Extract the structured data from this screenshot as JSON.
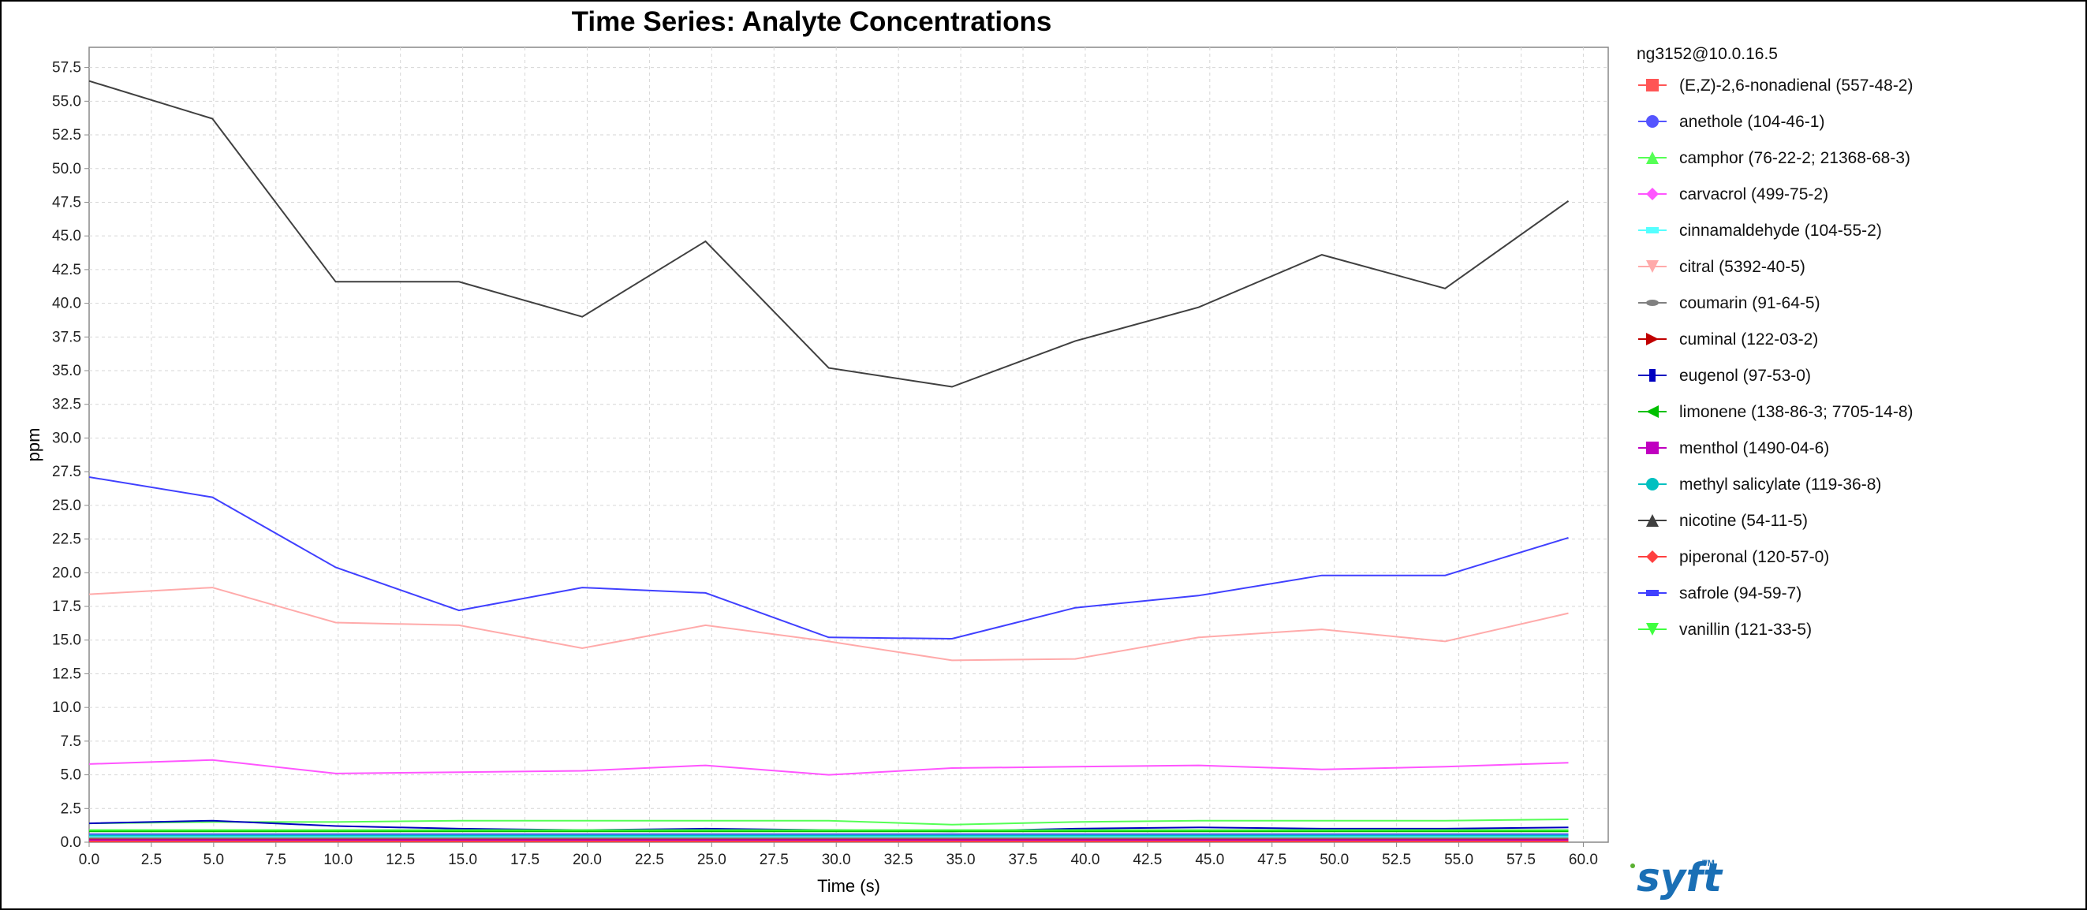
{
  "chart_data": {
    "type": "line",
    "title": "Time Series: Analyte Concentrations",
    "xlabel": "Time (s)",
    "ylabel": "ppm",
    "xlim": [
      0,
      61
    ],
    "ylim": [
      0,
      59
    ],
    "x_ticks": [
      0.0,
      2.5,
      5.0,
      7.5,
      10.0,
      12.5,
      15.0,
      17.5,
      20.0,
      22.5,
      25.0,
      27.5,
      30.0,
      32.5,
      35.0,
      37.5,
      40.0,
      42.5,
      45.0,
      47.5,
      50.0,
      52.5,
      55.0,
      57.5,
      60.0
    ],
    "y_ticks": [
      0.0,
      2.5,
      5.0,
      7.5,
      10.0,
      12.5,
      15.0,
      17.5,
      20.0,
      22.5,
      25.0,
      27.5,
      30.0,
      32.5,
      35.0,
      37.5,
      40.0,
      42.5,
      45.0,
      47.5,
      50.0,
      52.5,
      55.0,
      57.5
    ],
    "grid": true,
    "legend_title": "ng3152@10.0.16.5",
    "legend_position": "right",
    "x": [
      0,
      5,
      10,
      15,
      20,
      25,
      30,
      35,
      40,
      45,
      50,
      55,
      60
    ],
    "series": [
      {
        "name": "(E,Z)-2,6-nonadienal (557-48-2)",
        "color": "#ff5555",
        "marker": "square",
        "values": [
          0.1,
          0.1,
          0.1,
          0.1,
          0.1,
          0.1,
          0.1,
          0.1,
          0.1,
          0.1,
          0.1,
          0.1,
          0.1
        ]
      },
      {
        "name": "anethole (104-46-1)",
        "color": "#5555ff",
        "marker": "circle",
        "values": [
          0.6,
          0.6,
          0.6,
          0.6,
          0.6,
          0.6,
          0.6,
          0.6,
          0.6,
          0.6,
          0.6,
          0.6,
          0.6
        ]
      },
      {
        "name": "camphor (76-22-2; 21368-68-3)",
        "color": "#55ff55",
        "marker": "triangle-up",
        "values": [
          1.4,
          1.5,
          1.5,
          1.6,
          1.6,
          1.6,
          1.6,
          1.3,
          1.5,
          1.6,
          1.6,
          1.6,
          1.7
        ]
      },
      {
        "name": "carvacrol (499-75-2)",
        "color": "#ff55ff",
        "marker": "diamond",
        "values": [
          5.8,
          6.1,
          5.1,
          5.2,
          5.3,
          5.7,
          5.0,
          5.5,
          5.6,
          5.7,
          5.4,
          5.6,
          5.9
        ]
      },
      {
        "name": "cinnamaldehyde (104-55-2)",
        "color": "#55ffff",
        "marker": "rect-h",
        "values": [
          0.4,
          0.4,
          0.4,
          0.4,
          0.4,
          0.4,
          0.4,
          0.4,
          0.4,
          0.4,
          0.4,
          0.4,
          0.4
        ]
      },
      {
        "name": "citral (5392-40-5)",
        "color": "#ffaaaa",
        "marker": "triangle-down",
        "values": [
          18.4,
          18.9,
          16.3,
          16.1,
          14.4,
          16.1,
          14.9,
          13.5,
          13.6,
          15.2,
          15.8,
          14.9,
          17.0
        ]
      },
      {
        "name": "coumarin (91-64-5)",
        "color": "#808080",
        "marker": "ellipse",
        "values": [
          0.3,
          0.3,
          0.3,
          0.3,
          0.3,
          0.3,
          0.3,
          0.3,
          0.3,
          0.3,
          0.3,
          0.3,
          0.3
        ]
      },
      {
        "name": "cuminal (122-03-2)",
        "color": "#c00000",
        "marker": "triangle-right",
        "values": [
          0.2,
          0.2,
          0.2,
          0.2,
          0.2,
          0.2,
          0.2,
          0.2,
          0.2,
          0.2,
          0.2,
          0.2,
          0.2
        ]
      },
      {
        "name": "eugenol (97-53-0)",
        "color": "#0000c0",
        "marker": "rect-v",
        "values": [
          1.4,
          1.6,
          1.2,
          1.0,
          0.9,
          1.0,
          0.9,
          0.8,
          1.0,
          1.1,
          1.0,
          1.0,
          1.1
        ]
      },
      {
        "name": "limonene (138-86-3; 7705-14-8)",
        "color": "#00c000",
        "marker": "triangle-left",
        "values": [
          0.8,
          0.8,
          0.8,
          0.8,
          0.8,
          0.8,
          0.8,
          0.8,
          0.8,
          0.8,
          0.8,
          0.8,
          0.8
        ]
      },
      {
        "name": "menthol (1490-04-6)",
        "color": "#c000c0",
        "marker": "square",
        "values": [
          0.15,
          0.15,
          0.15,
          0.15,
          0.15,
          0.15,
          0.15,
          0.15,
          0.15,
          0.15,
          0.15,
          0.15,
          0.15
        ]
      },
      {
        "name": "methyl salicylate (119-36-8)",
        "color": "#00c0c0",
        "marker": "circle",
        "values": [
          0.5,
          0.5,
          0.5,
          0.5,
          0.5,
          0.5,
          0.5,
          0.5,
          0.5,
          0.5,
          0.5,
          0.5,
          0.5
        ]
      },
      {
        "name": "nicotine (54-11-5)",
        "color": "#404040",
        "marker": "triangle-up",
        "values": [
          56.5,
          53.7,
          41.6,
          41.6,
          39.0,
          44.6,
          35.2,
          33.8,
          37.2,
          39.7,
          43.6,
          41.1,
          47.6
        ]
      },
      {
        "name": "piperonal (120-57-0)",
        "color": "#ff4040",
        "marker": "diamond",
        "values": [
          0.05,
          0.05,
          0.05,
          0.05,
          0.05,
          0.05,
          0.05,
          0.05,
          0.05,
          0.05,
          0.05,
          0.05,
          0.05
        ]
      },
      {
        "name": "safrole (94-59-7)",
        "color": "#4040ff",
        "marker": "rect-h",
        "values": [
          27.1,
          25.6,
          20.4,
          17.2,
          18.9,
          18.5,
          15.2,
          15.1,
          17.4,
          18.3,
          19.8,
          19.8,
          22.6
        ]
      },
      {
        "name": "vanillin (121-33-5)",
        "color": "#40ff40",
        "marker": "triangle-down",
        "values": [
          0.9,
          0.9,
          0.9,
          0.9,
          0.9,
          0.9,
          0.9,
          0.9,
          0.9,
          0.9,
          0.9,
          0.9,
          0.9
        ]
      }
    ]
  },
  "logo": {
    "text": "syft",
    "tm": "TM",
    "color": "#1a6fb5"
  }
}
